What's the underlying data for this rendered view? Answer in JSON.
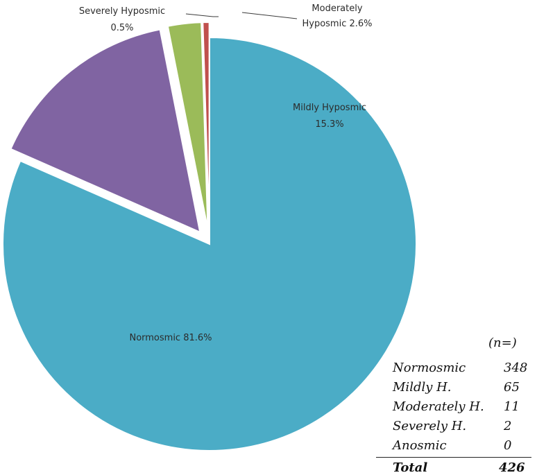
{
  "chart_data": {
    "type": "pie",
    "title": "",
    "slices": [
      {
        "label": "Normosmic",
        "percent_label": "81.6%",
        "value": 81.6,
        "color": "#4bacc6",
        "exploded": false
      },
      {
        "label": "Mildly Hyposmic",
        "percent_label": "15.3%",
        "value": 15.3,
        "color": "#8064a2",
        "exploded": true
      },
      {
        "label": "Moderately Hyposmic",
        "percent_label": "2.6%",
        "value": 2.6,
        "color": "#9bbb59",
        "exploded": true
      },
      {
        "label": "Severely Hyposmic",
        "percent_label": "0.5%",
        "value": 0.5,
        "color": "#c0504d",
        "exploded": true
      }
    ],
    "labels": {
      "normosmic": "Normosmic 81.6%",
      "mildly_line1": "Mildly Hyposmic",
      "mildly_line2": "15.3%",
      "moderately_line1": "Moderately",
      "moderately_line2": "Hyposmic 2.6%",
      "severely_line1": "Severely Hyposmic",
      "severely_line2": "0.5%"
    }
  },
  "table": {
    "header": "(n=)",
    "rows": [
      {
        "name": "Normosmic",
        "value": "348"
      },
      {
        "name": "Mildly H.",
        "value": "65"
      },
      {
        "name": "Moderately H.",
        "value": "11"
      },
      {
        "name": "Severely H.",
        "value": "2"
      },
      {
        "name": "Anosmic",
        "value": "0"
      }
    ],
    "total": {
      "name": "Total",
      "value": "426"
    }
  }
}
